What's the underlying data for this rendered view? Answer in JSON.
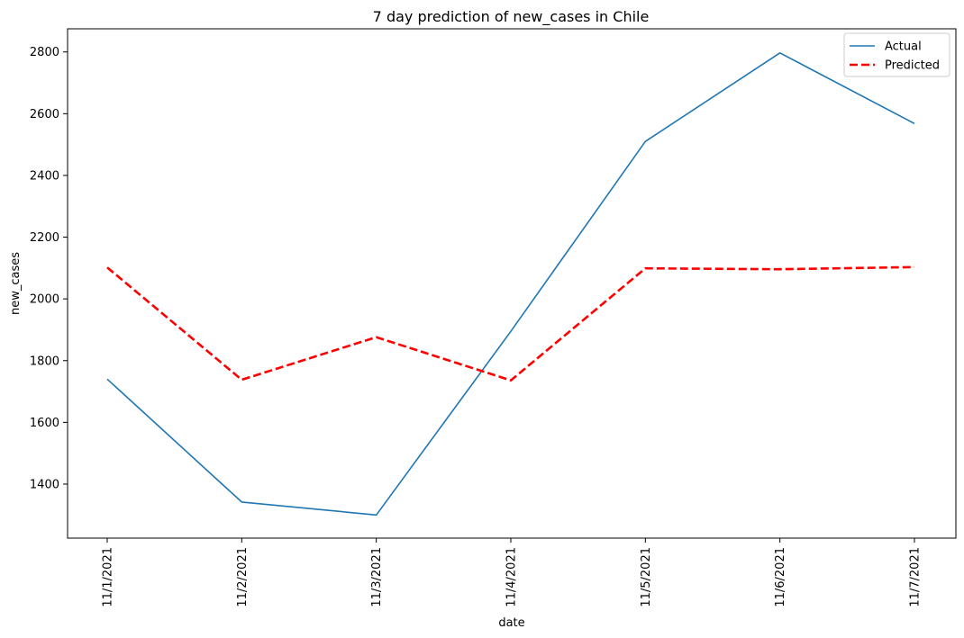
{
  "chart_data": {
    "type": "line",
    "title": "7 day prediction of new_cases in Chile",
    "xlabel": "date",
    "ylabel": "new_cases",
    "categories": [
      "11/1/2021",
      "11/2/2021",
      "11/3/2021",
      "11/4/2021",
      "11/5/2021",
      "11/6/2021",
      "11/7/2021"
    ],
    "series": [
      {
        "name": "Actual",
        "color": "#1f77b4",
        "style": "solid",
        "values": [
          1740,
          1342,
          1300,
          1895,
          2510,
          2797,
          2568
        ]
      },
      {
        "name": "Predicted",
        "color": "#ff0000",
        "style": "dashed",
        "values": [
          2102,
          1738,
          1876,
          1736,
          2099,
          2096,
          2103
        ]
      }
    ],
    "ylim": [
      1225,
      2875
    ],
    "yticks": [
      1400,
      1600,
      1800,
      2000,
      2200,
      2400,
      2600,
      2800
    ],
    "grid": false,
    "legend_position": "top-right"
  }
}
